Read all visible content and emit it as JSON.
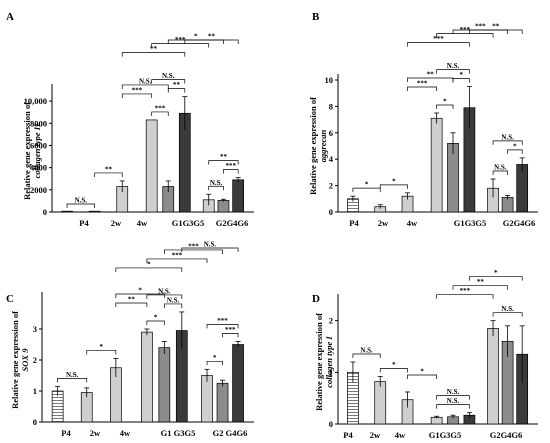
{
  "chart_data": [
    {
      "type": "bar",
      "panel_label": "A",
      "ylabel": [
        "Relative gene expression of",
        "collagen type II"
      ],
      "ylim": [
        0,
        11000
      ],
      "yticks": [
        0,
        2000,
        4000,
        6000,
        8000,
        10000
      ],
      "ytick_labels": [
        "0",
        "2000",
        "4000",
        "6000",
        "8000",
        "10,000"
      ],
      "groups": [
        "P4",
        "2w",
        "4w",
        "G1G3G5",
        "G2G4G6"
      ],
      "categories": [
        "P4",
        "2w",
        "4w",
        "G1",
        "G3",
        "G5",
        "G2",
        "G4",
        "G6"
      ],
      "values": [
        1,
        2,
        2300,
        8300,
        2300,
        8900,
        1100,
        1050,
        2900
      ],
      "errors": [
        0,
        0,
        500,
        0,
        500,
        1500,
        500,
        100,
        200
      ],
      "significance": [
        {
          "from": 0,
          "to": 1,
          "label": "N.S.",
          "level": 0
        },
        {
          "from": 1,
          "to": 2,
          "label": "**",
          "level": 0
        },
        {
          "from": 3,
          "to": 4,
          "label": "***",
          "level": 0
        },
        {
          "from": 4,
          "to": 5,
          "label": "**",
          "level": 0
        },
        {
          "from": 3,
          "to": 5,
          "label": "N.S.",
          "level": 1
        },
        {
          "from": 2,
          "to": 3,
          "label": "***",
          "level": 2
        },
        {
          "from": 2,
          "to": 4,
          "label": "N.S.",
          "level": 3
        },
        {
          "from": 2,
          "to": 5,
          "label": "**",
          "level": 4
        },
        {
          "from": 6,
          "to": 7,
          "label": "N.S.",
          "level": 0
        },
        {
          "from": 7,
          "to": 8,
          "label": "***",
          "level": 0
        },
        {
          "from": 6,
          "to": 8,
          "label": "**",
          "level": 1
        },
        {
          "from": 3,
          "to": 6,
          "label": "***",
          "level": 5
        },
        {
          "from": 4,
          "to": 7,
          "label": "*",
          "level": 6
        },
        {
          "from": 5,
          "to": 8,
          "label": "**",
          "level": 7
        }
      ]
    },
    {
      "type": "bar",
      "panel_label": "B",
      "ylabel": [
        "Relative gene expression of",
        "aggrecan"
      ],
      "ylim": [
        0,
        10
      ],
      "yticks": [
        0,
        2,
        4,
        6,
        8,
        10
      ],
      "ytick_labels": [
        "0",
        "2",
        "4",
        "6",
        "8",
        "10"
      ],
      "groups": [
        "P4",
        "2w",
        "4w",
        "G1G3G5",
        "G2G4G6"
      ],
      "categories": [
        "P4",
        "2w",
        "4w",
        "G1",
        "G3",
        "G5",
        "G2",
        "G4",
        "G6"
      ],
      "values": [
        1.0,
        0.4,
        1.2,
        7.1,
        5.2,
        7.9,
        1.8,
        1.1,
        3.6
      ],
      "errors": [
        0.2,
        0.15,
        0.25,
        0.4,
        0.8,
        1.6,
        0.7,
        0.15,
        0.5
      ],
      "significance": [
        {
          "from": 0,
          "to": 1,
          "label": "*",
          "level": 0
        },
        {
          "from": 1,
          "to": 2,
          "label": "*",
          "level": 0
        },
        {
          "from": 3,
          "to": 4,
          "label": "*",
          "level": 0
        },
        {
          "from": 4,
          "to": 5,
          "label": "*",
          "level": 0
        },
        {
          "from": 3,
          "to": 5,
          "label": "N.S.",
          "level": 1
        },
        {
          "from": 2,
          "to": 3,
          "label": "***",
          "level": 2
        },
        {
          "from": 2,
          "to": 4,
          "label": "**",
          "level": 3
        },
        {
          "from": 2,
          "to": 5,
          "label": "***",
          "level": 4
        },
        {
          "from": 6,
          "to": 7,
          "label": "N.S.",
          "level": 0
        },
        {
          "from": 7,
          "to": 8,
          "label": "*",
          "level": 0
        },
        {
          "from": 6,
          "to": 8,
          "label": "N.S.",
          "level": 1
        },
        {
          "from": 3,
          "to": 6,
          "label": "***",
          "level": 5
        },
        {
          "from": 4,
          "to": 7,
          "label": "***",
          "level": 6
        },
        {
          "from": 5,
          "to": 8,
          "label": "**",
          "level": 7
        }
      ]
    },
    {
      "type": "bar",
      "panel_label": "C",
      "ylabel": [
        "Relative gene expression of",
        "SOX 9"
      ],
      "ylim": [
        0,
        4
      ],
      "yticks": [
        0,
        1,
        2,
        3
      ],
      "ytick_labels": [
        "0",
        "1",
        "2",
        "3"
      ],
      "groups": [
        "P4",
        "2w",
        "4w",
        "G1 G3G5",
        "G2 G4G6"
      ],
      "categories": [
        "P4",
        "2w",
        "4w",
        "G1",
        "G3",
        "G5",
        "G2",
        "G4",
        "G6"
      ],
      "values": [
        1.0,
        0.95,
        1.75,
        2.9,
        2.4,
        2.95,
        1.5,
        1.25,
        2.5
      ],
      "errors": [
        0.15,
        0.15,
        0.3,
        0.1,
        0.2,
        0.6,
        0.2,
        0.1,
        0.1
      ],
      "significance": [
        {
          "from": 0,
          "to": 1,
          "label": "N.S.",
          "level": 0
        },
        {
          "from": 1,
          "to": 2,
          "label": "*",
          "level": 0
        },
        {
          "from": 3,
          "to": 4,
          "label": "*",
          "level": 0
        },
        {
          "from": 4,
          "to": 5,
          "label": "N.S.",
          "level": 0
        },
        {
          "from": 3,
          "to": 5,
          "label": "N.S.",
          "level": 1
        },
        {
          "from": 2,
          "to": 3,
          "label": "**",
          "level": 2
        },
        {
          "from": 2,
          "to": 4,
          "label": "*",
          "level": 3
        },
        {
          "from": 2,
          "to": 5,
          "label": "*",
          "level": 4
        },
        {
          "from": 6,
          "to": 7,
          "label": "*",
          "level": 0
        },
        {
          "from": 7,
          "to": 8,
          "label": "***",
          "level": 0
        },
        {
          "from": 6,
          "to": 8,
          "label": "***",
          "level": 1
        },
        {
          "from": 3,
          "to": 6,
          "label": "***",
          "level": 5
        },
        {
          "from": 4,
          "to": 7,
          "label": "***",
          "level": 6
        },
        {
          "from": 5,
          "to": 8,
          "label": "N.S.",
          "level": 7
        }
      ]
    },
    {
      "type": "bar",
      "panel_label": "D",
      "ylabel": [
        "Relative gene expression of",
        "collagen type I"
      ],
      "ylim": [
        0,
        2.4
      ],
      "yticks": [
        0,
        1,
        2
      ],
      "ytick_labels": [
        "0",
        "1",
        "2"
      ],
      "groups": [
        "P4",
        "2w",
        "4w",
        "G1G3G5",
        "G2G4G6"
      ],
      "categories": [
        "P4",
        "2w",
        "4w",
        "G1",
        "G3",
        "G5",
        "G2",
        "G4",
        "G6"
      ],
      "values": [
        1.0,
        0.82,
        0.47,
        0.13,
        0.14,
        0.17,
        1.85,
        1.6,
        1.35
      ],
      "errors": [
        0.2,
        0.1,
        0.15,
        0.02,
        0.03,
        0.05,
        0.15,
        0.3,
        0.55
      ],
      "significance": [
        {
          "from": 0,
          "to": 1,
          "label": "N.S.",
          "level": 0
        },
        {
          "from": 1,
          "to": 2,
          "label": "*",
          "level": 0
        },
        {
          "from": 2,
          "to": 3,
          "label": "*",
          "level": 1
        },
        {
          "from": 3,
          "to": 5,
          "label": "N.S.",
          "level": 0
        },
        {
          "from": 3,
          "to": 5,
          "label": "N.S.",
          "level": 1
        },
        {
          "from": 6,
          "to": 8,
          "label": "N.S.",
          "level": 0
        },
        {
          "from": 3,
          "to": 6,
          "label": "***",
          "level": 2
        },
        {
          "from": 4,
          "to": 7,
          "label": "**",
          "level": 3
        },
        {
          "from": 5,
          "to": 8,
          "label": "*",
          "level": 4
        }
      ]
    }
  ],
  "colors": {
    "p4": "#ffffff",
    "light": "#cfcfcf",
    "mid": "#8c8c8c",
    "dark": "#3a3a3a",
    "stroke": "#000000"
  }
}
